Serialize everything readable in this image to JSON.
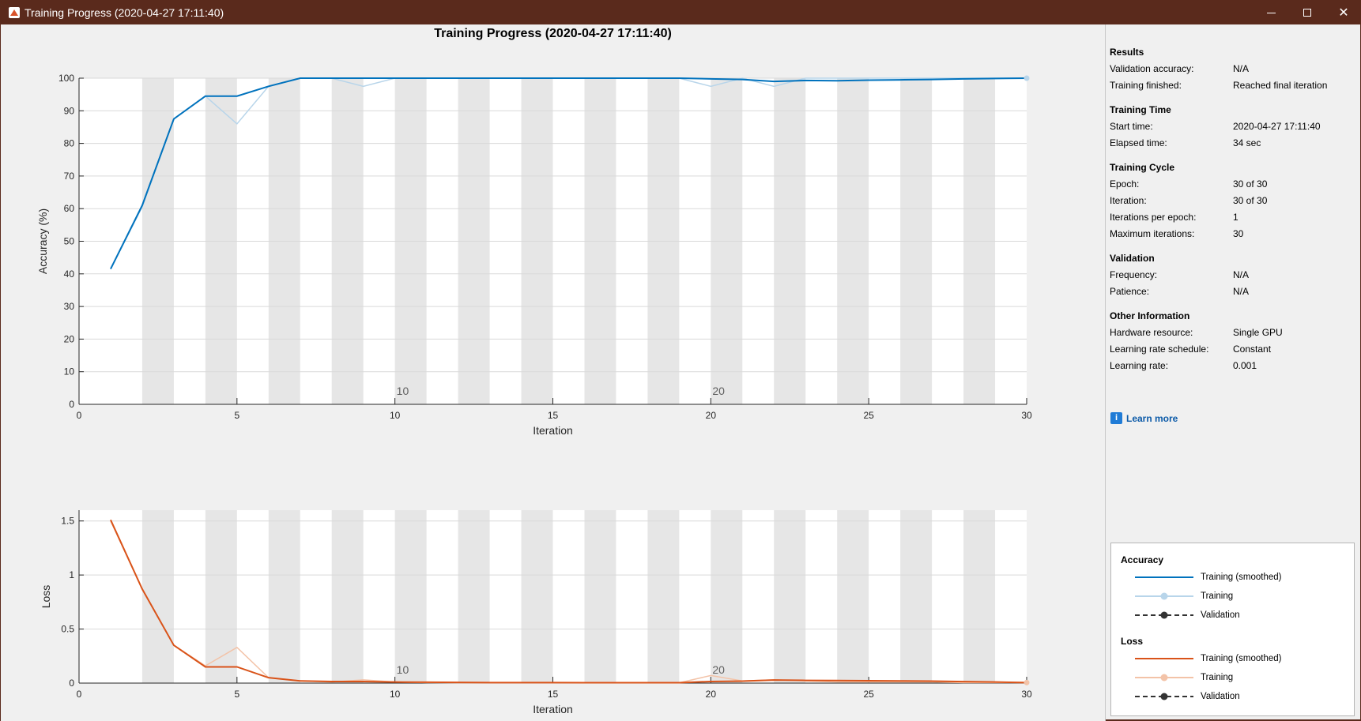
{
  "window": {
    "title": "Training Progress (2020-04-27 17:11:40)",
    "controls": {
      "minimize": "minimize-icon",
      "maximize": "maximize-icon",
      "close": "close-icon"
    }
  },
  "main_title": "Training Progress (2020-04-27 17:11:40)",
  "colors": {
    "accuracy_smoothed": "#0072bd",
    "accuracy_raw": "#b8d5ea",
    "loss_smoothed": "#d95319",
    "loss_raw": "#f3c3a8",
    "epoch_band": "#e6e6e6",
    "titlebar": "#5a2a1c"
  },
  "chart_data": [
    {
      "type": "line",
      "name": "accuracy-chart",
      "xlabel": "Iteration",
      "ylabel": "Accuracy (%)",
      "xlim": [
        0,
        30
      ],
      "ylim": [
        0,
        100
      ],
      "xticks": [
        0,
        5,
        10,
        15,
        20,
        25,
        30
      ],
      "yticks": [
        0,
        10,
        20,
        30,
        40,
        50,
        60,
        70,
        80,
        90,
        100
      ],
      "epoch_markers": [
        {
          "x": 10,
          "label": "10"
        },
        {
          "x": 20,
          "label": "20"
        }
      ],
      "x": [
        1,
        2,
        3,
        4,
        5,
        6,
        7,
        8,
        9,
        10,
        11,
        12,
        13,
        14,
        15,
        16,
        17,
        18,
        19,
        20,
        21,
        22,
        23,
        24,
        25,
        26,
        27,
        28,
        29,
        30
      ],
      "series": [
        {
          "name": "Training",
          "values": [
            41.5,
            60.5,
            87.5,
            94.5,
            86,
            97.5,
            100,
            100,
            97.5,
            100,
            100,
            100,
            100,
            100,
            100,
            100,
            100,
            100,
            100,
            97.5,
            100,
            97.5,
            100,
            100,
            100,
            100,
            100,
            100,
            100,
            100
          ]
        },
        {
          "name": "Training (smoothed)",
          "values": [
            41.5,
            61,
            87.5,
            94.5,
            94.5,
            97.5,
            100,
            100,
            100,
            100,
            100,
            100,
            100,
            100,
            100,
            100,
            100,
            100,
            100,
            99.8,
            99.6,
            99.0,
            99.3,
            99.2,
            99.4,
            99.5,
            99.6,
            99.8,
            99.9,
            100
          ]
        }
      ]
    },
    {
      "type": "line",
      "name": "loss-chart",
      "xlabel": "Iteration",
      "ylabel": "Loss",
      "xlim": [
        0,
        30
      ],
      "ylim": [
        0,
        1.6
      ],
      "xticks": [
        0,
        5,
        10,
        15,
        20,
        25,
        30
      ],
      "yticks": [
        0,
        0.5,
        1,
        1.5
      ],
      "ytick_labels": [
        "0",
        "0.5",
        "1",
        "1.5"
      ],
      "epoch_markers": [
        {
          "x": 10,
          "label": "10"
        },
        {
          "x": 20,
          "label": "20"
        }
      ],
      "x": [
        1,
        2,
        3,
        4,
        5,
        6,
        7,
        8,
        9,
        10,
        11,
        12,
        13,
        14,
        15,
        16,
        17,
        18,
        19,
        20,
        21,
        22,
        23,
        24,
        25,
        26,
        27,
        28,
        29,
        30
      ],
      "series": [
        {
          "name": "Training",
          "values": [
            1.5,
            0.87,
            0.35,
            0.16,
            0.33,
            0.05,
            0.02,
            0.01,
            0.03,
            0.01,
            0.005,
            0.003,
            0.003,
            0.003,
            0.003,
            0.003,
            0.003,
            0.003,
            0.003,
            0.07,
            0.02,
            0.03,
            0.02,
            0.01,
            0.01,
            0.01,
            0.01,
            0.005,
            0.005,
            0.005
          ]
        },
        {
          "name": "Training (smoothed)",
          "values": [
            1.51,
            0.87,
            0.35,
            0.15,
            0.15,
            0.05,
            0.02,
            0.015,
            0.015,
            0.01,
            0.008,
            0.006,
            0.005,
            0.005,
            0.005,
            0.004,
            0.004,
            0.004,
            0.004,
            0.015,
            0.018,
            0.028,
            0.025,
            0.024,
            0.022,
            0.02,
            0.018,
            0.014,
            0.01,
            0.005
          ]
        }
      ]
    }
  ],
  "info": {
    "results": {
      "title": "Results",
      "rows": [
        {
          "label": "Validation accuracy:",
          "value": "N/A"
        },
        {
          "label": "Training finished:",
          "value": "Reached final iteration"
        }
      ]
    },
    "training_time": {
      "title": "Training Time",
      "rows": [
        {
          "label": "Start time:",
          "value": "2020-04-27 17:11:40"
        },
        {
          "label": "Elapsed time:",
          "value": "34 sec"
        }
      ]
    },
    "training_cycle": {
      "title": "Training Cycle",
      "rows": [
        {
          "label": "Epoch:",
          "value": "30 of 30"
        },
        {
          "label": "Iteration:",
          "value": "30 of 30"
        },
        {
          "label": "Iterations per epoch:",
          "value": "1"
        },
        {
          "label": "Maximum iterations:",
          "value": "30"
        }
      ]
    },
    "validation": {
      "title": "Validation",
      "rows": [
        {
          "label": "Frequency:",
          "value": "N/A"
        },
        {
          "label": "Patience:",
          "value": "N/A"
        }
      ]
    },
    "other": {
      "title": "Other Information",
      "rows": [
        {
          "label": "Hardware resource:",
          "value": "Single GPU"
        },
        {
          "label": "Learning rate schedule:",
          "value": "Constant"
        },
        {
          "label": "Learning rate:",
          "value": "0.001"
        }
      ]
    }
  },
  "learn_more": {
    "icon": "info-icon",
    "label": "Learn more"
  },
  "legend": {
    "accuracy": {
      "title": "Accuracy",
      "items": [
        "Training (smoothed)",
        "Training",
        "Validation"
      ]
    },
    "loss": {
      "title": "Loss",
      "items": [
        "Training (smoothed)",
        "Training",
        "Validation"
      ]
    }
  }
}
